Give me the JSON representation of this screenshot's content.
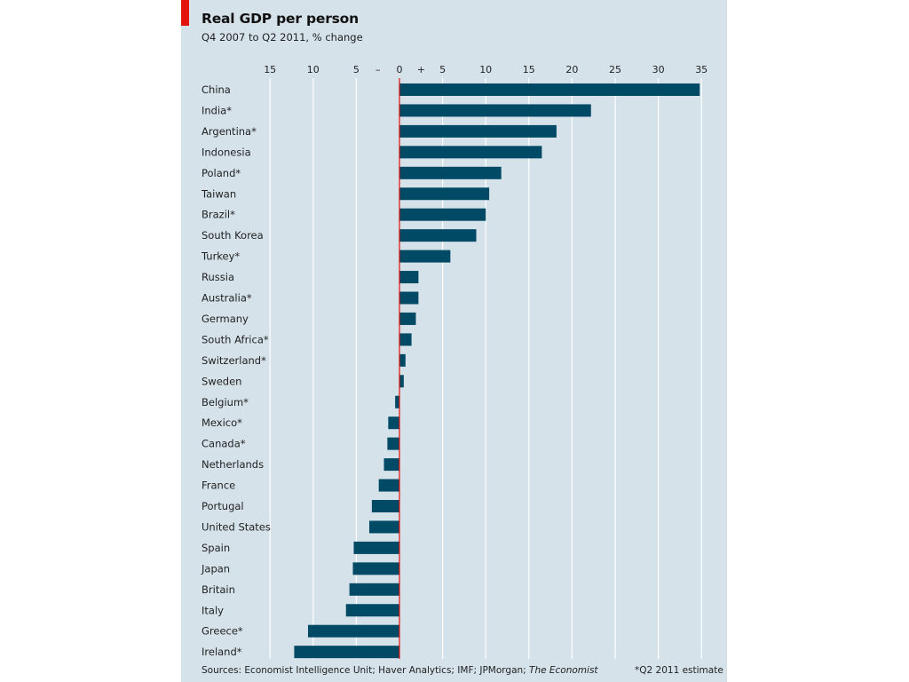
{
  "header": {
    "title": "Real GDP per person",
    "subtitle": "Q4 2007 to Q2 2011, % change"
  },
  "footer": {
    "sources_prefix": "Sources: Economist Intelligence Unit; Haver Analytics; IMF; JPMorgan; ",
    "sources_italic": "The Economist",
    "footnote": "*Q2 2011 estimate"
  },
  "colors": {
    "bar": "#004a65",
    "panel": "#d5e2ea",
    "accent": "#e3120b",
    "zero_line": "#e3120b",
    "grid": "#ffffff"
  },
  "chart_data": {
    "type": "bar",
    "orientation": "horizontal",
    "title": "Real GDP per person",
    "subtitle": "Q4 2007 to Q2 2011, % change",
    "xlim": [
      -15,
      35
    ],
    "grid": true,
    "x_ticks": [
      {
        "value": -15,
        "label": "15"
      },
      {
        "value": -10,
        "label": "10"
      },
      {
        "value": -5,
        "label": "5"
      },
      {
        "value": -2.5,
        "label": "–"
      },
      {
        "value": 0,
        "label": "0"
      },
      {
        "value": 2.5,
        "label": "+"
      },
      {
        "value": 5,
        "label": "5"
      },
      {
        "value": 10,
        "label": "10"
      },
      {
        "value": 15,
        "label": "15"
      },
      {
        "value": 20,
        "label": "20"
      },
      {
        "value": 25,
        "label": "25"
      },
      {
        "value": 30,
        "label": "30"
      },
      {
        "value": 35,
        "label": "35"
      }
    ],
    "categories": [
      "China",
      "India*",
      "Argentina*",
      "Indonesia",
      "Poland*",
      "Taiwan",
      "Brazil*",
      "South Korea",
      "Turkey*",
      "Russia",
      "Australia*",
      "Germany",
      "South Africa*",
      "Switzerland*",
      "Sweden",
      "Belgium*",
      "Mexico*",
      "Canada*",
      "Netherlands",
      "France",
      "Portugal",
      "United States",
      "Spain",
      "Japan",
      "Britain",
      "Italy",
      "Greece*",
      "Ireland*"
    ],
    "values": [
      34.8,
      22.2,
      18.2,
      16.5,
      11.8,
      10.4,
      10.0,
      8.9,
      5.9,
      2.2,
      2.2,
      1.9,
      1.4,
      0.7,
      0.5,
      -0.5,
      -1.3,
      -1.4,
      -1.8,
      -2.4,
      -3.2,
      -3.5,
      -5.3,
      -5.4,
      -5.8,
      -6.2,
      -10.6,
      -12.2
    ]
  }
}
